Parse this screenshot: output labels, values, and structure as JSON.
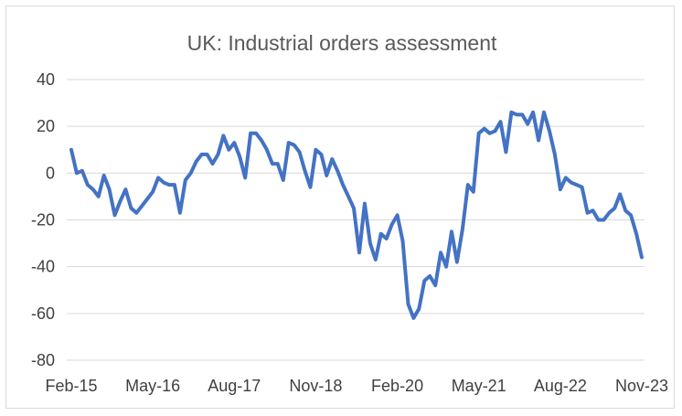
{
  "chart_data": {
    "type": "line",
    "title": "UK: Industrial orders assessment",
    "xlabel": "",
    "ylabel": "",
    "ylim": [
      -80,
      40
    ],
    "y_ticks": [
      40,
      20,
      0,
      -20,
      -40,
      -60,
      -80
    ],
    "x_tick_labels": [
      "Feb-15",
      "May-16",
      "Aug-17",
      "Nov-18",
      "Feb-20",
      "May-21",
      "Aug-22",
      "Nov-23"
    ],
    "grid": true,
    "series": [
      {
        "name": "Industrial orders assessment",
        "color": "#4472c4",
        "start": "Feb-15",
        "frequency": "monthly",
        "values": [
          10,
          0,
          1,
          -5,
          -7,
          -10,
          -1,
          -7,
          -18,
          -12,
          -7,
          -15,
          -17,
          -14,
          -11,
          -8,
          -2,
          -4,
          -5,
          -5,
          -17,
          -3,
          0,
          5,
          8,
          8,
          4,
          8,
          16,
          10,
          13,
          7,
          -2,
          17,
          17,
          14,
          10,
          4,
          4,
          -3,
          13,
          12,
          9,
          1,
          -6,
          10,
          8,
          -1,
          6,
          1,
          -5,
          -10,
          -15,
          -34,
          -13,
          -30,
          -37,
          -26,
          -28,
          -22,
          -18,
          -29,
          -56,
          -62,
          -58,
          -46,
          -44,
          -48,
          -34,
          -40,
          -25,
          -38,
          -24,
          -5,
          -8,
          17,
          19,
          17,
          18,
          22,
          9,
          26,
          25,
          25,
          21,
          26,
          14,
          26,
          18,
          8,
          -7,
          -2,
          -4,
          -5,
          -6,
          -17,
          -16,
          -20,
          -20,
          -17,
          -15,
          -9,
          -16,
          -18,
          -26,
          -36
        ]
      }
    ]
  }
}
